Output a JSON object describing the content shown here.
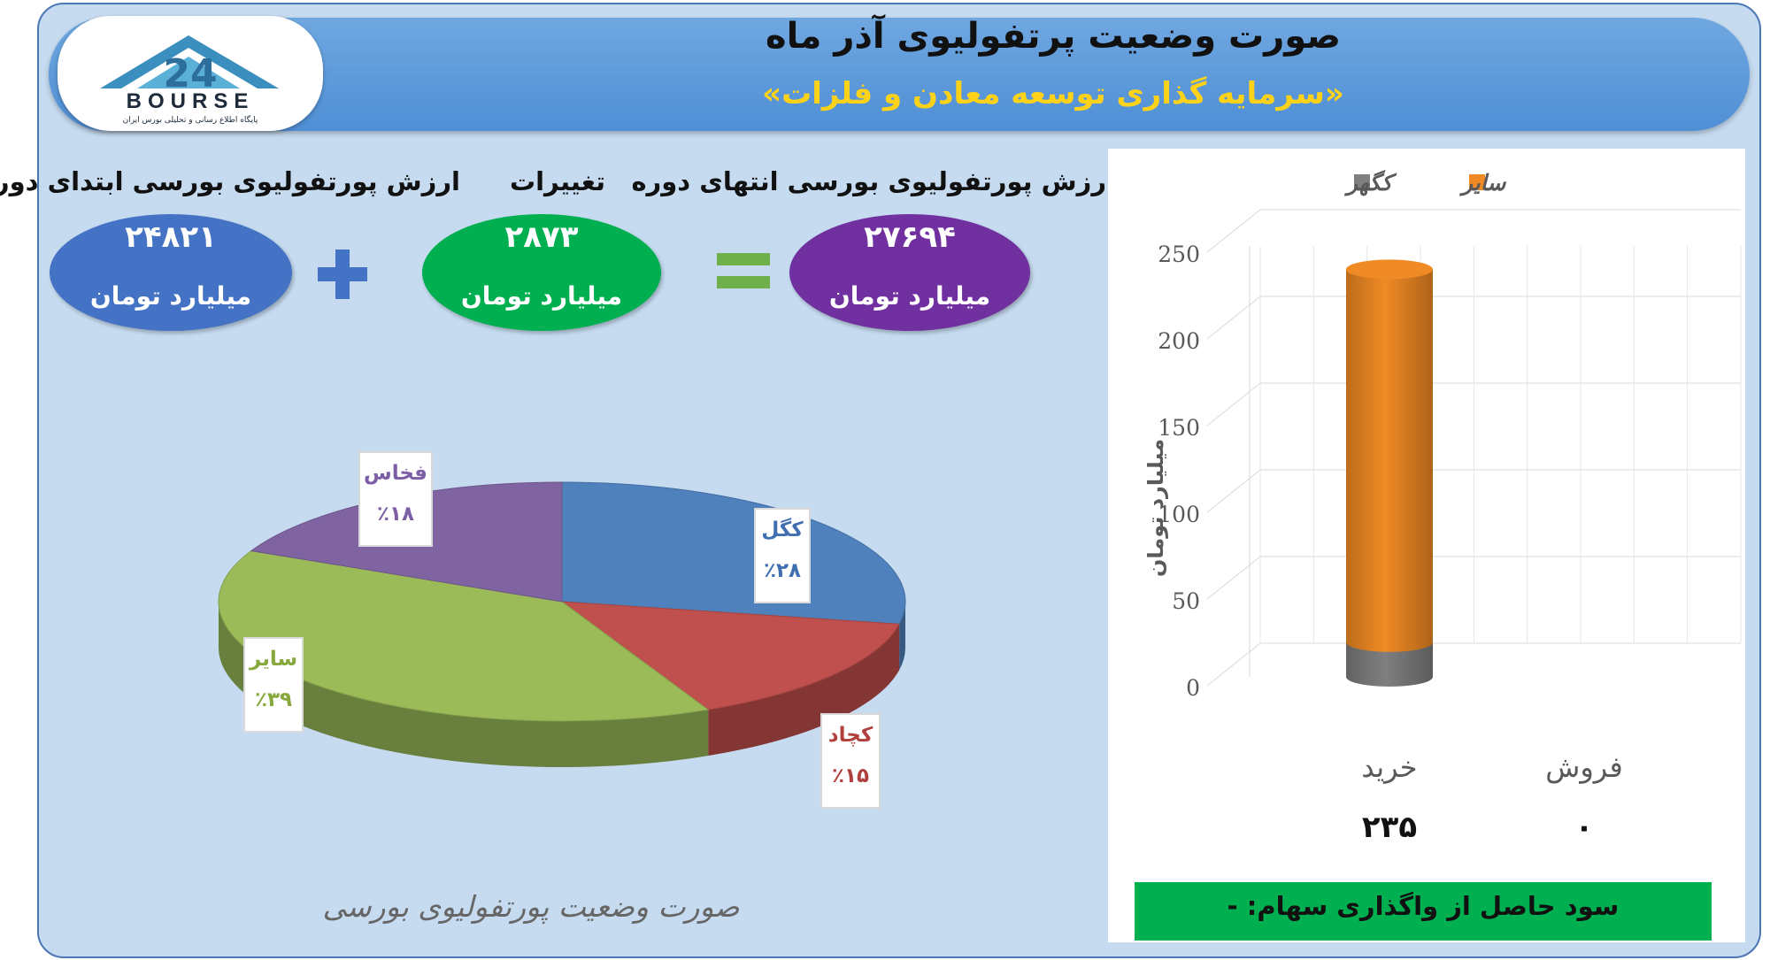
{
  "header": {
    "title": "صورت وضعیت پرتفولیوی آذر ماه",
    "subtitle": "«سرمایه گذاری توسعه معادن و فلزات»"
  },
  "logo": {
    "text": "BOURSE",
    "number": "24",
    "tagline": "پایگاه اطلاع رسانی و تحلیلی بورس ایران"
  },
  "summary": {
    "start": {
      "heading": "ارزش پورتفولیوی بورسی ابتدای دوره",
      "value": "۲۴۸۲۱",
      "unit": "میلیارد تومان",
      "color": "#4472c4"
    },
    "change": {
      "heading": "تغییرات",
      "value": "۲۸۷۳",
      "unit": "میلیارد تومان",
      "color": "#00b050"
    },
    "end": {
      "heading": "ارزش پورتفولیوی بورسی انتهای دوره",
      "value": "۲۷۶۹۴",
      "unit": "میلیارد تومان",
      "color": "#7030a0"
    },
    "plus_icon": "plus-icon",
    "equals_icon": "equals-icon"
  },
  "pie": {
    "caption": "صورت وضعیت پورتفولیوی بورسی",
    "chart_data": {
      "type": "pie",
      "slices": [
        {
          "name": "کگل",
          "label": "٪۲۸",
          "value": 28,
          "color": "#4f81bd"
        },
        {
          "name": "کچاد",
          "label": "٪۱۵",
          "value": 15,
          "color": "#c0504d"
        },
        {
          "name": "سایر",
          "label": "٪۳۹",
          "value": 39,
          "color": "#9bbb59"
        },
        {
          "name": "فخاس",
          "label": "٪۱۸",
          "value": 18,
          "color": "#8064a2"
        }
      ]
    }
  },
  "bar": {
    "chart_data": {
      "type": "bar",
      "stacked": true,
      "categories": [
        "خرید",
        "فروش"
      ],
      "series": [
        {
          "name": "کگهر",
          "values": [
            20,
            0
          ],
          "color": "#7f7f7f"
        },
        {
          "name": "سایر",
          "values": [
            215,
            0
          ],
          "color": "#f08a24"
        }
      ],
      "totals": [
        "۲۳۵",
        "۰"
      ],
      "ylabel": "میلیارد تومان",
      "ylim": [
        0,
        250
      ],
      "yticks": [
        0,
        50,
        100,
        150,
        200,
        250
      ],
      "grid": true,
      "legend": "top"
    }
  },
  "profit": {
    "text": "سود حاصل از واگذاری سهام: -"
  }
}
